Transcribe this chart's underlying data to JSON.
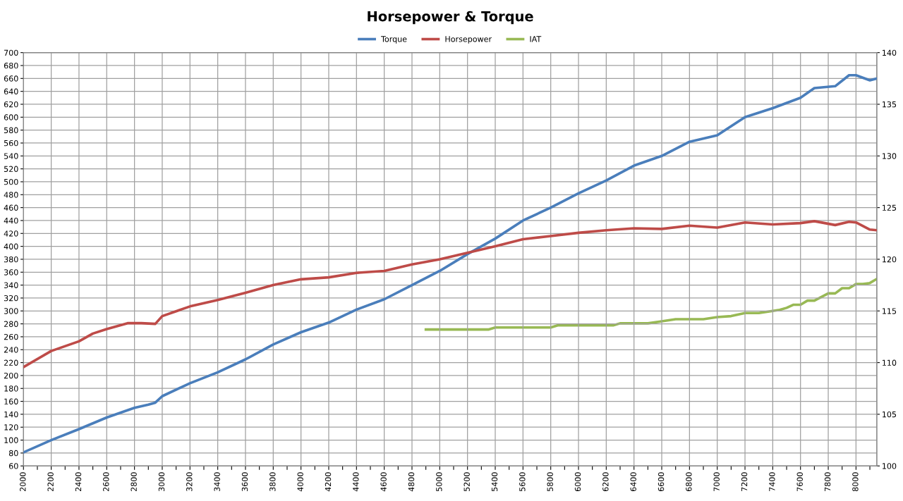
{
  "chart_data": {
    "type": "line",
    "title": "Horsepower & Torque",
    "legend": "top",
    "grid": true,
    "marker": "none",
    "line_style": "solid",
    "xlim": [
      2000,
      8150
    ],
    "xticks": [
      2000,
      {
        "value": 2100,
        "label": null
      },
      2200,
      {
        "value": 2300,
        "label": null
      },
      2400,
      {
        "value": 2500,
        "label": null
      },
      2600,
      {
        "value": 2700,
        "label": null
      },
      2800,
      {
        "value": 2900,
        "label": null
      },
      3000,
      {
        "value": 3100,
        "label": null
      },
      3200,
      {
        "value": 3300,
        "label": null
      },
      3400,
      {
        "value": 3500,
        "label": null
      },
      3600,
      {
        "value": 3700,
        "label": null
      },
      3800,
      {
        "value": 3900,
        "label": null
      },
      4000,
      {
        "value": 4100,
        "label": null
      },
      4200,
      {
        "value": 4300,
        "label": null
      },
      4400,
      {
        "value": 4500,
        "label": null
      },
      4600,
      {
        "value": 4700,
        "label": null
      },
      4800,
      {
        "value": 4900,
        "label": null
      },
      5000,
      {
        "value": 5100,
        "label": null
      },
      5200,
      {
        "value": 5300,
        "label": null
      },
      5400,
      {
        "value": 5500,
        "label": null
      },
      5600,
      {
        "value": 5700,
        "label": null
      },
      5800,
      {
        "value": 5900,
        "label": null
      },
      6000,
      {
        "value": 6100,
        "label": null
      },
      6200,
      {
        "value": 6300,
        "label": null
      },
      6400,
      {
        "value": 6500,
        "label": null
      },
      6600,
      {
        "value": 6700,
        "label": null
      },
      6800,
      {
        "value": 6900,
        "label": null
      },
      7000,
      {
        "value": 7100,
        "label": null
      },
      7200,
      {
        "value": 7300,
        "label": null
      },
      7400,
      {
        "value": 7500,
        "label": null
      },
      7600,
      {
        "value": 7700,
        "label": null
      },
      7800,
      {
        "value": 7900,
        "label": null
      },
      8000,
      {
        "value": 8100,
        "label": null
      }
    ],
    "ylim": [
      60,
      700
    ],
    "yticks": [
      60,
      80,
      100,
      120,
      140,
      160,
      180,
      200,
      220,
      240,
      260,
      280,
      300,
      320,
      340,
      360,
      380,
      400,
      420,
      440,
      460,
      480,
      500,
      520,
      540,
      560,
      580,
      600,
      620,
      640,
      660,
      680,
      700
    ],
    "y2lim": [
      100,
      140
    ],
    "y2ticks": [
      100,
      105,
      110,
      115,
      120,
      125,
      130,
      135,
      140
    ],
    "series": [
      {
        "name": "Torque",
        "color": "#4a7ebb",
        "x": [
          2000,
          2200,
          2400,
          2600,
          2800,
          2900,
          2950,
          3000,
          3200,
          3400,
          3600,
          3800,
          4000,
          4200,
          4400,
          4600,
          4800,
          5000,
          5200,
          5400,
          5600,
          5800,
          6000,
          6200,
          6400,
          6600,
          6800,
          7000,
          7200,
          7400,
          7600,
          7700,
          7850,
          7950,
          8000,
          8100,
          8150
        ],
        "values": [
          81,
          100,
          117,
          135,
          150,
          155,
          158,
          168,
          188,
          205,
          225,
          248,
          267,
          282,
          302,
          318,
          340,
          362,
          388,
          412,
          440,
          460,
          482,
          502,
          525,
          540,
          562,
          572,
          600,
          614,
          630,
          645,
          648,
          665,
          665,
          657,
          660
        ]
      },
      {
        "name": "Horsepower",
        "color": "#be4b48",
        "x": [
          2000,
          2200,
          2400,
          2500,
          2600,
          2750,
          2850,
          2950,
          3000,
          3200,
          3400,
          3600,
          3800,
          4000,
          4200,
          4400,
          4600,
          4800,
          5000,
          5200,
          5400,
          5600,
          5800,
          6000,
          6200,
          6400,
          6600,
          6800,
          7000,
          7200,
          7400,
          7600,
          7700,
          7850,
          7950,
          8000,
          8100,
          8150
        ],
        "values": [
          213,
          238,
          253,
          265,
          272,
          281,
          281,
          280,
          292,
          307,
          317,
          328,
          340,
          349,
          352,
          359,
          362,
          372,
          380,
          390,
          400,
          411,
          416,
          421,
          425,
          428,
          427,
          432,
          429,
          437,
          434,
          436,
          439,
          433,
          438,
          437,
          426,
          425
        ]
      },
      {
        "name": "IAT",
        "color": "#98b954",
        "axis": "y2",
        "x": [
          4900,
          5350,
          5400,
          5800,
          5850,
          6250,
          6300,
          6500,
          6600,
          6700,
          6900,
          7000,
          7100,
          7200,
          7300,
          7400,
          7450,
          7500,
          7550,
          7600,
          7650,
          7700,
          7800,
          7850,
          7900,
          7950,
          8000,
          8050,
          8100,
          8150
        ],
        "values": [
          113.2,
          113.2,
          113.4,
          113.4,
          113.6,
          113.6,
          113.8,
          113.8,
          114.0,
          114.2,
          114.2,
          114.4,
          114.5,
          114.8,
          114.8,
          115.0,
          115.1,
          115.3,
          115.6,
          115.6,
          116.0,
          116.0,
          116.7,
          116.7,
          117.2,
          117.2,
          117.6,
          117.6,
          117.7,
          118.1
        ]
      }
    ]
  }
}
